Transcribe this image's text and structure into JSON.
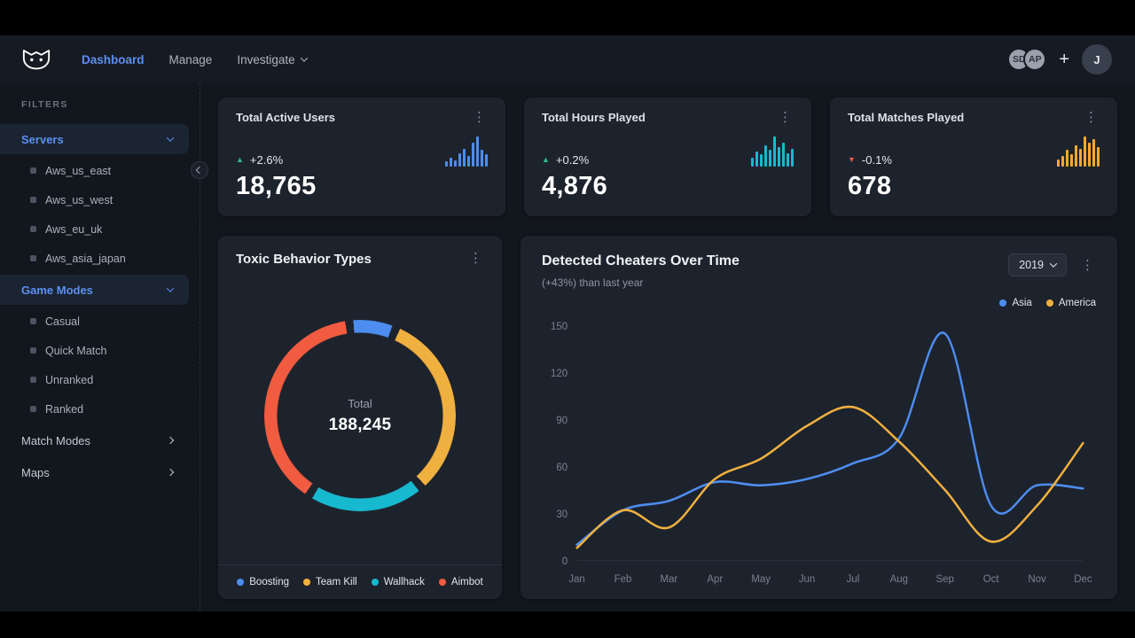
{
  "icons": {
    "kebab": "⋮",
    "plus": "+",
    "up_triangle": "▲",
    "down_triangle": "▼"
  },
  "nav": {
    "items": [
      {
        "label": "Dashboard",
        "active": true
      },
      {
        "label": "Manage",
        "active": false
      },
      {
        "label": "Investigate",
        "active": false,
        "has_dropdown": true
      }
    ],
    "avatars": [
      "SD",
      "AP"
    ],
    "user_initial": "J"
  },
  "sidebar": {
    "filters_label": "FILTERS",
    "sections": [
      {
        "label": "Servers",
        "expanded": true,
        "items": [
          "Aws_us_east",
          "Aws_us_west",
          "Aws_eu_uk",
          "Aws_asia_japan"
        ]
      },
      {
        "label": "Game Modes",
        "expanded": true,
        "items": [
          "Casual",
          "Quick Match",
          "Unranked",
          "Ranked"
        ]
      },
      {
        "label": "Match Modes",
        "expanded": false,
        "items": []
      },
      {
        "label": "Maps",
        "expanded": false,
        "items": []
      }
    ]
  },
  "stats": [
    {
      "title": "Total Active Users",
      "change": "+2.6%",
      "direction": "up",
      "value": "18,765"
    },
    {
      "title": "Total Hours Played",
      "change": "+0.2%",
      "direction": "up",
      "value": "4,876"
    },
    {
      "title": "Total Matches Played",
      "change": "-0.1%",
      "direction": "down",
      "value": "678"
    }
  ],
  "cards": {
    "cheaters": {
      "year": "2019"
    }
  },
  "colors": {
    "accent_blue": "#5b8ff0",
    "green_up": "#2dbd8b",
    "red_down": "#e2584a",
    "card_bg": "#1d232d"
  },
  "chart_data": [
    {
      "type": "bar",
      "name": "active-users-sparkline",
      "color": "#4d8df0",
      "values": [
        18,
        30,
        22,
        45,
        60,
        35,
        80,
        100,
        55,
        40
      ]
    },
    {
      "type": "bar",
      "name": "hours-played-sparkline",
      "color": "#17b9cf",
      "values": [
        30,
        50,
        40,
        70,
        55,
        100,
        65,
        80,
        45,
        60
      ]
    },
    {
      "type": "bar",
      "name": "matches-played-sparkline",
      "color": "#f5a930",
      "values": [
        25,
        35,
        55,
        40,
        70,
        60,
        100,
        80,
        90,
        65
      ]
    },
    {
      "type": "pie",
      "name": "toxic-behavior-types",
      "title": "Toxic Behavior Types",
      "labels": [
        "Boosting",
        "Team Kill",
        "Wallhack",
        "Aimbot"
      ],
      "values": [
        7,
        33,
        20,
        40
      ],
      "colors": [
        "#4d8df0",
        "#f0b03f",
        "#17b9cf",
        "#f15b40"
      ],
      "total_label": "Total",
      "total_value": "188,245",
      "legend_position": "bottom"
    },
    {
      "type": "line",
      "name": "detected-cheaters-over-time",
      "title": "Detected Cheaters Over Time",
      "subtitle": "(+43%) than last year",
      "x": [
        "Jan",
        "Feb",
        "Mar",
        "Apr",
        "May",
        "Jun",
        "Jul",
        "Aug",
        "Sep",
        "Oct",
        "Nov",
        "Dec"
      ],
      "ylim": [
        0,
        150
      ],
      "yticks": [
        0,
        30,
        60,
        90,
        120,
        150
      ],
      "legend_position": "top-right",
      "grid": false,
      "series": [
        {
          "name": "Asia",
          "color": "#4d8df0",
          "values": [
            10,
            32,
            38,
            50,
            48,
            52,
            62,
            78,
            145,
            35,
            48,
            46
          ]
        },
        {
          "name": "America",
          "color": "#f0b03f",
          "values": [
            8,
            32,
            21,
            52,
            65,
            86,
            98,
            76,
            45,
            12,
            35,
            75
          ]
        }
      ]
    }
  ]
}
